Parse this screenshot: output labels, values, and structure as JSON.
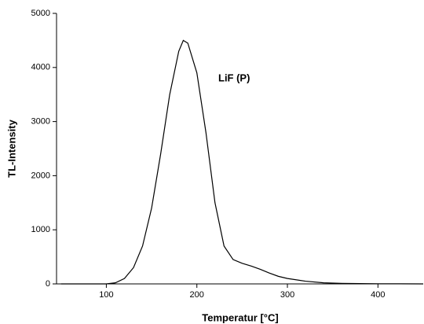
{
  "chart_data": {
    "type": "line",
    "annotation": "LiF (P)",
    "xlabel": "Temperatur [°C]",
    "ylabel": "TL-Intensity",
    "series": [
      {
        "name": "LiF (P)",
        "color": "#000000",
        "x": [
          50,
          100,
          110,
          120,
          130,
          140,
          150,
          160,
          170,
          180,
          185,
          190,
          200,
          210,
          220,
          230,
          240,
          250,
          260,
          270,
          280,
          290,
          300,
          320,
          340,
          360,
          400,
          450
        ],
        "values": [
          0,
          0,
          20,
          100,
          300,
          700,
          1400,
          2400,
          3500,
          4300,
          4500,
          4450,
          3900,
          2800,
          1500,
          700,
          450,
          380,
          330,
          270,
          200,
          140,
          100,
          50,
          20,
          10,
          3,
          0
        ]
      }
    ],
    "xlim": [
      45,
      450
    ],
    "xticks": [
      100,
      200,
      300,
      400
    ],
    "ylim": [
      0,
      5000
    ],
    "yticks": [
      0,
      1000,
      2000,
      3000,
      4000,
      5000
    ]
  }
}
